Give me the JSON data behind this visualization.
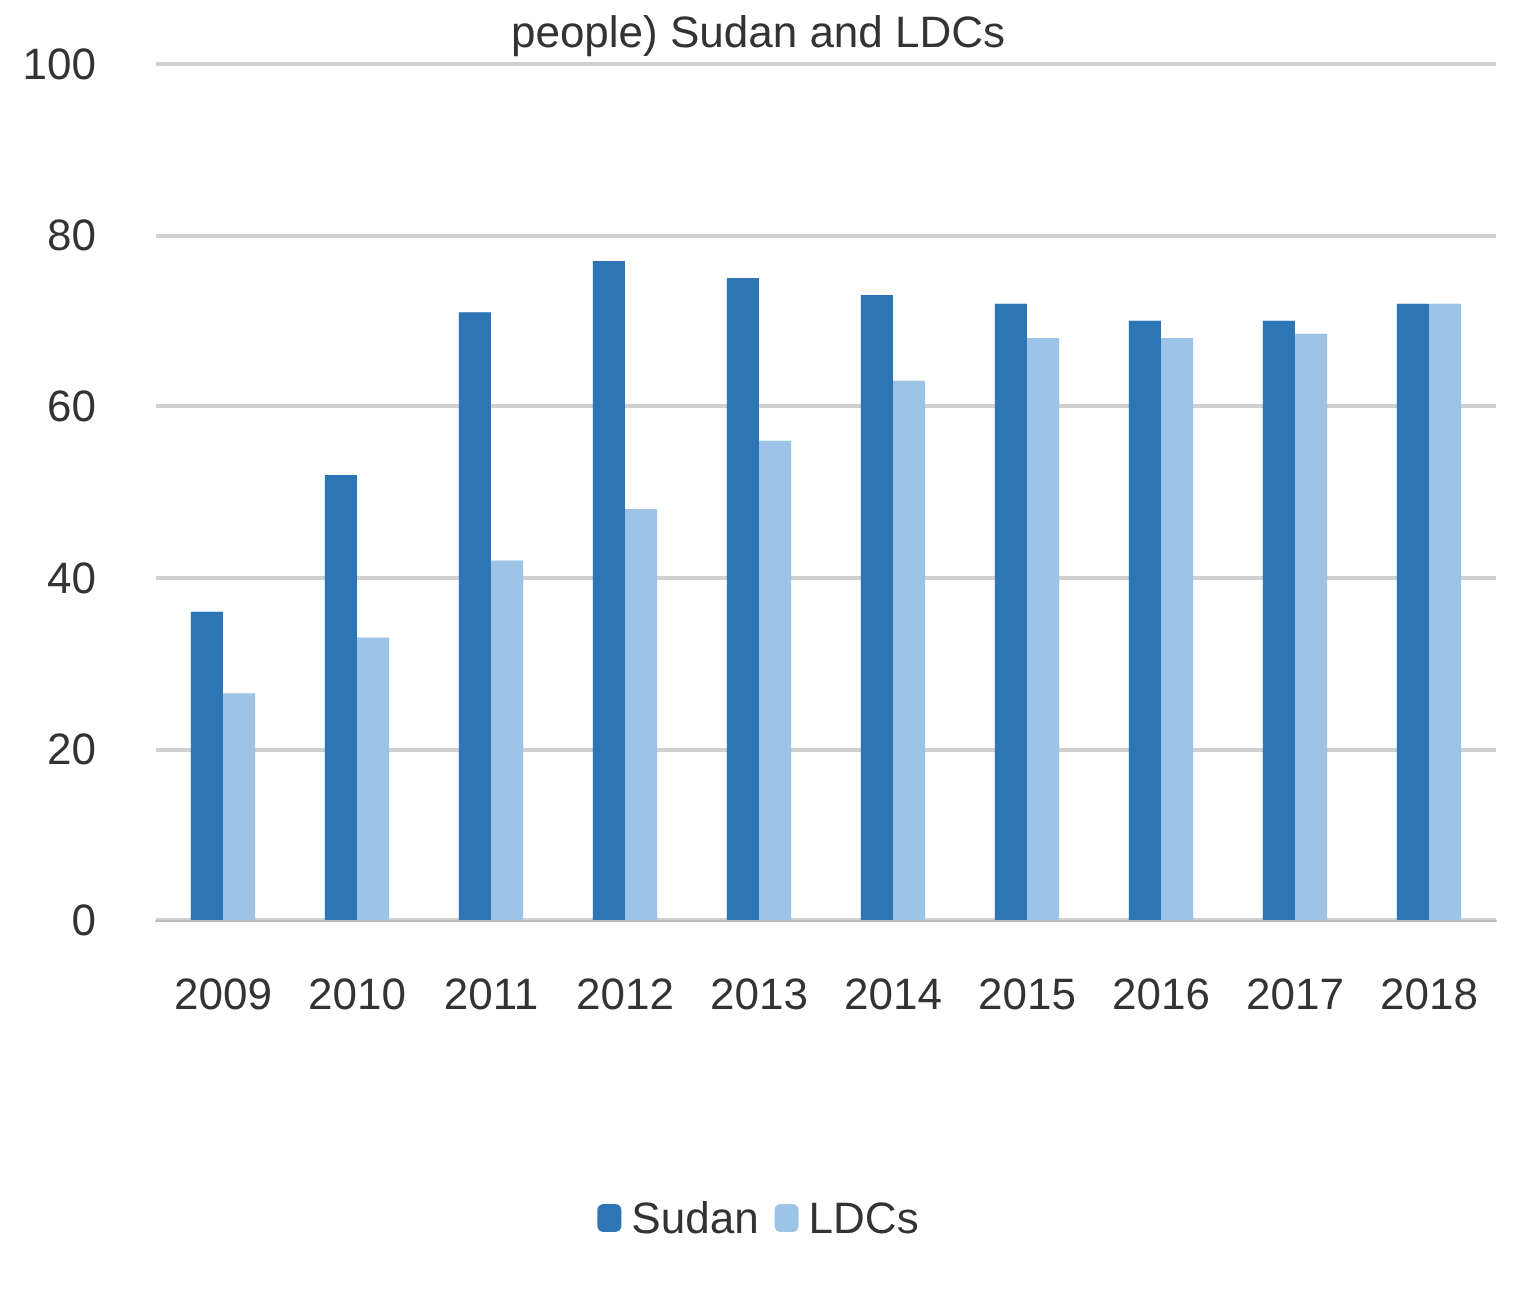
{
  "chart_data": {
    "type": "bar",
    "title": "people) Sudan and LDCs",
    "categories": [
      "2009",
      "2010",
      "2011",
      "2012",
      "2013",
      "2014",
      "2015",
      "2016",
      "2017",
      "2018"
    ],
    "series": [
      {
        "name": "Sudan",
        "color": "#2e75b6",
        "values": [
          36,
          52,
          71,
          77,
          75,
          73,
          72,
          70,
          70,
          72
        ]
      },
      {
        "name": "LDCs",
        "color": "#9dc3e6",
        "values": [
          26.5,
          33,
          42,
          48,
          56,
          63,
          68,
          68,
          68.5,
          72
        ]
      }
    ],
    "ylim": [
      0,
      100
    ],
    "yticks": [
      0,
      20,
      40,
      60,
      80,
      100
    ],
    "grid": "y",
    "legend": "bottom"
  }
}
